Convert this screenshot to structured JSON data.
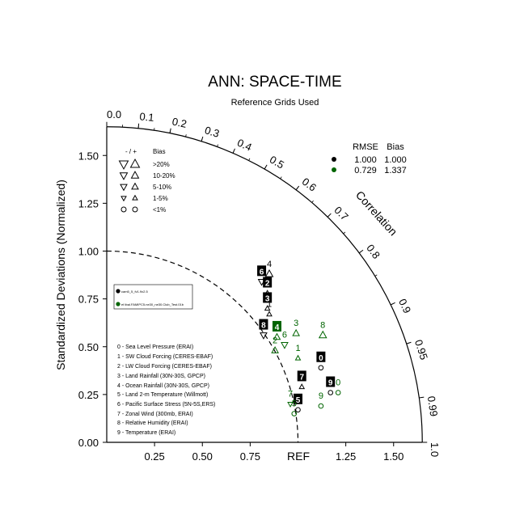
{
  "chart_data": {
    "type": "taylor",
    "title": "ANN: SPACE-TIME",
    "subtitle": "Reference Grids Used",
    "ylabel": "Standardized Deviations (Normalized)",
    "arc_label": "Correlation",
    "ref_label": "REF",
    "std_range": [
      0,
      1.65
    ],
    "x_ticks": [
      "0.25",
      "0.50",
      "0.75",
      "1.25",
      "1.50"
    ],
    "x_tick_values": [
      0.25,
      0.5,
      0.75,
      1.25,
      1.5
    ],
    "y_ticks": [
      "0.00",
      "0.25",
      "0.50",
      "0.75",
      "1.00",
      "1.25",
      "1.50"
    ],
    "y_tick_values": [
      0,
      0.25,
      0.5,
      0.75,
      1.0,
      1.25,
      1.5
    ],
    "corr_ticks": [
      "0.0",
      "0.1",
      "0.2",
      "0.3",
      "0.4",
      "0.5",
      "0.6",
      "0.7",
      "0.8",
      "0.9",
      "0.95",
      "0.99",
      "1.0"
    ],
    "corr_tick_values": [
      0,
      0.1,
      0.2,
      0.3,
      0.4,
      0.5,
      0.6,
      0.7,
      0.8,
      0.9,
      0.95,
      0.99,
      1.0
    ],
    "stats_table": {
      "headers": [
        "RMSE",
        "Bias"
      ],
      "rows": [
        {
          "color": "#000000",
          "rmse": "1.000",
          "bias": "1.000"
        },
        {
          "color": "#006400",
          "rmse": "0.729",
          "bias": "1.337"
        }
      ]
    },
    "bias_legend": {
      "header_sign": "- / +",
      "header": "Bias",
      "items": [
        ">20%",
        "10-20%",
        "5-10%",
        "1-5%",
        "<1%"
      ]
    },
    "case_legend": [
      {
        "name": "cam5_5_fv1.9x2.5",
        "color": "#000000"
      },
      {
        "name": "ef.tbal.FAMIPC5.ne30_ne30.Club_Test.01b",
        "color": "#006400"
      }
    ],
    "variables": [
      "0 - Sea Level Pressure (ERAI)",
      "1 - SW Cloud Forcing (CERES-EBAF)",
      "2 - LW Cloud Forcing (CERES-EBAF)",
      "3 - Land Rainfall (30N-30S, GPCP)",
      "4 - Ocean Rainfall (30N-30S, GPCP)",
      "5 - Land 2-m Temperature (Willmott)",
      "6 - Pacific Surface Stress (5N-5S,ERS)",
      "7 - Zonal Wind (300mb, ERAI)",
      "8 - Relative Humidity (ERAI)",
      "9 - Temperature (ERAI)"
    ],
    "series": [
      {
        "name": "cam5_5_fv1.9x2.5",
        "color": "#000000",
        "points": [
          {
            "id": "0",
            "x": 1.12,
            "y": 0.39,
            "bias": "<1%",
            "dir": "none"
          },
          {
            "id": "1",
            "x": 0.85,
            "y": 0.67,
            "bias": "1-5%",
            "dir": "up"
          },
          {
            "id": "2",
            "x": 0.84,
            "y": 0.78,
            "bias": "1-5%",
            "dir": "up"
          },
          {
            "id": "3",
            "x": 0.84,
            "y": 0.7,
            "bias": "1-5%",
            "dir": "up"
          },
          {
            "id": "4",
            "x": 0.85,
            "y": 0.88,
            "bias": "10-20%",
            "dir": "up"
          },
          {
            "id": "5",
            "x": 1.0,
            "y": 0.17,
            "bias": "<1%",
            "dir": "none"
          },
          {
            "id": "6",
            "x": 0.81,
            "y": 0.84,
            "bias": "5-10%",
            "dir": "down"
          },
          {
            "id": "7",
            "x": 1.02,
            "y": 0.29,
            "bias": "1-5%",
            "dir": "up"
          },
          {
            "id": "8",
            "x": 0.82,
            "y": 0.56,
            "bias": "5-10%",
            "dir": "down"
          },
          {
            "id": "9",
            "x": 1.17,
            "y": 0.26,
            "bias": "<1%",
            "dir": "none"
          }
        ]
      },
      {
        "name": "ef.tbal.FAMIPC5.ne30_ne30.Club_Test.01b",
        "color": "#006400",
        "points": [
          {
            "id": "0",
            "x": 1.21,
            "y": 0.26,
            "bias": "<1%",
            "dir": "none"
          },
          {
            "id": "1",
            "x": 1.0,
            "y": 0.44,
            "bias": "1-5%",
            "dir": "up"
          },
          {
            "id": "2",
            "x": 0.88,
            "y": 0.48,
            "bias": "5-10%",
            "dir": "up"
          },
          {
            "id": "3",
            "x": 0.99,
            "y": 0.57,
            "bias": "5-10%",
            "dir": "up"
          },
          {
            "id": "4",
            "x": 0.89,
            "y": 0.55,
            "bias": "5-10%",
            "dir": "up"
          },
          {
            "id": "5",
            "x": 0.98,
            "y": 0.15,
            "bias": "<1%",
            "dir": "none"
          },
          {
            "id": "6",
            "x": 0.93,
            "y": 0.51,
            "bias": "5-10%",
            "dir": "down"
          },
          {
            "id": "7",
            "x": 0.96,
            "y": 0.2,
            "bias": "1-5%",
            "dir": "down"
          },
          {
            "id": "8",
            "x": 1.13,
            "y": 0.56,
            "bias": "10-20%",
            "dir": "up"
          },
          {
            "id": "9",
            "x": 1.12,
            "y": 0.19,
            "bias": "<1%",
            "dir": "none"
          }
        ]
      }
    ]
  }
}
